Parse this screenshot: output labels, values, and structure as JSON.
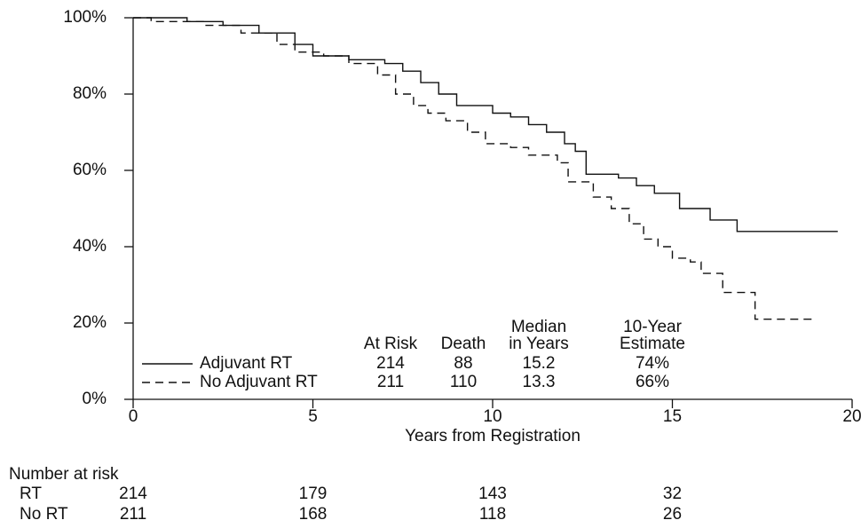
{
  "chart_data": {
    "type": "step",
    "x_label": "Years from Registration",
    "xlim": [
      0,
      20
    ],
    "xticks": [
      0,
      5,
      10,
      15,
      20
    ],
    "ylim": [
      0,
      100
    ],
    "yticks": [
      {
        "value": 0,
        "label": "0%"
      },
      {
        "value": 20,
        "label": "20%"
      },
      {
        "value": 40,
        "label": "40%"
      },
      {
        "value": 60,
        "label": "60%"
      },
      {
        "value": 80,
        "label": "80%"
      },
      {
        "value": 100,
        "label": "100%"
      }
    ],
    "step": "post",
    "series": [
      {
        "name": "Adjuvant RT",
        "color": "#111111",
        "dash": "solid",
        "x": [
          0,
          1.5,
          2.5,
          3.5,
          4.5,
          5,
          6,
          7,
          7.5,
          8,
          8.5,
          9,
          10,
          10.5,
          11,
          11.5,
          12,
          12.3,
          12.6,
          13.5,
          14,
          14.5,
          15.2,
          16.05,
          16.8,
          19.6
        ],
        "values": [
          100,
          99,
          98,
          96,
          93,
          90,
          89,
          88,
          86,
          83,
          80,
          77,
          75,
          74,
          72,
          70,
          67,
          65,
          59,
          58,
          56,
          54,
          50,
          47,
          44,
          44
        ],
        "at_risk": 214,
        "deaths": 88,
        "median_years": 15.2,
        "estimate": {
          "value": 74,
          "label": "74%"
        }
      },
      {
        "name": "No Adjuvant RT",
        "color": "#111111",
        "dash": "dashed",
        "x": [
          0,
          0.5,
          2,
          3,
          4,
          4.5,
          5.3,
          6,
          6.8,
          7.3,
          7.8,
          8.2,
          8.7,
          9.3,
          9.8,
          10.5,
          11,
          11.8,
          12.1,
          12.8,
          13.3,
          13.8,
          14.2,
          14.6,
          15,
          15.5,
          15.8,
          16.4,
          17.3,
          18.9
        ],
        "values": [
          100,
          99,
          98,
          96,
          93,
          91,
          90,
          88,
          85,
          80,
          77,
          75,
          73,
          70,
          67,
          66,
          64,
          62,
          57,
          53,
          50,
          46,
          42,
          40,
          37,
          36,
          33,
          28,
          21,
          21
        ],
        "at_risk": 211,
        "deaths": 110,
        "median_years": 13.3,
        "estimate": {
          "value": 66,
          "label": "66%"
        }
      }
    ],
    "legend_headers": [
      [
        "At Risk"
      ],
      [
        "Death"
      ],
      [
        "Median",
        "in Years"
      ],
      [
        "10-Year",
        "Estimate"
      ]
    ],
    "risk_table": {
      "title": "Number at risk",
      "times": [
        0,
        5,
        10,
        15
      ],
      "rows": [
        {
          "label": "RT",
          "values": [
            214,
            179,
            143,
            32
          ]
        },
        {
          "label": "No RT",
          "values": [
            211,
            168,
            118,
            26
          ]
        }
      ]
    }
  }
}
